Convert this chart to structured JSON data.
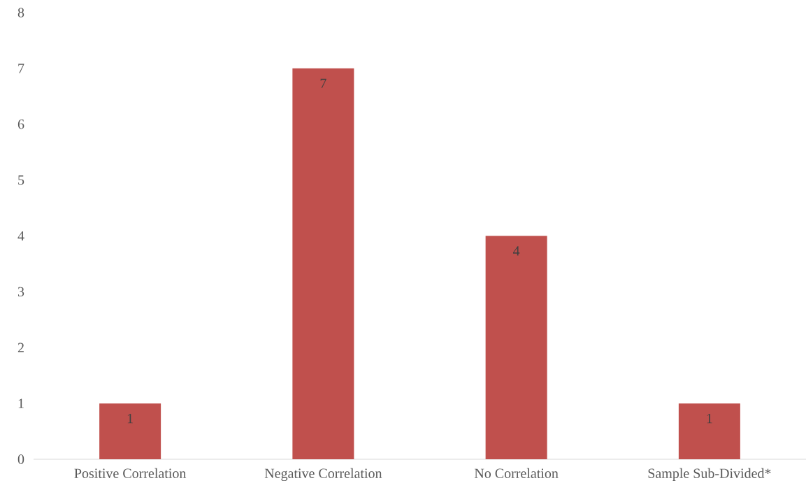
{
  "chart_data": {
    "type": "bar",
    "categories": [
      "Positive Correlation",
      "Negative Correlation",
      "No Correlation",
      "Sample Sub-Divided*"
    ],
    "values": [
      1,
      7,
      4,
      1
    ],
    "color": "#c0504d",
    "ylim": [
      0,
      8
    ],
    "yticks": [
      0,
      1,
      2,
      3,
      4,
      5,
      6,
      7,
      8
    ],
    "data_labels": true
  }
}
